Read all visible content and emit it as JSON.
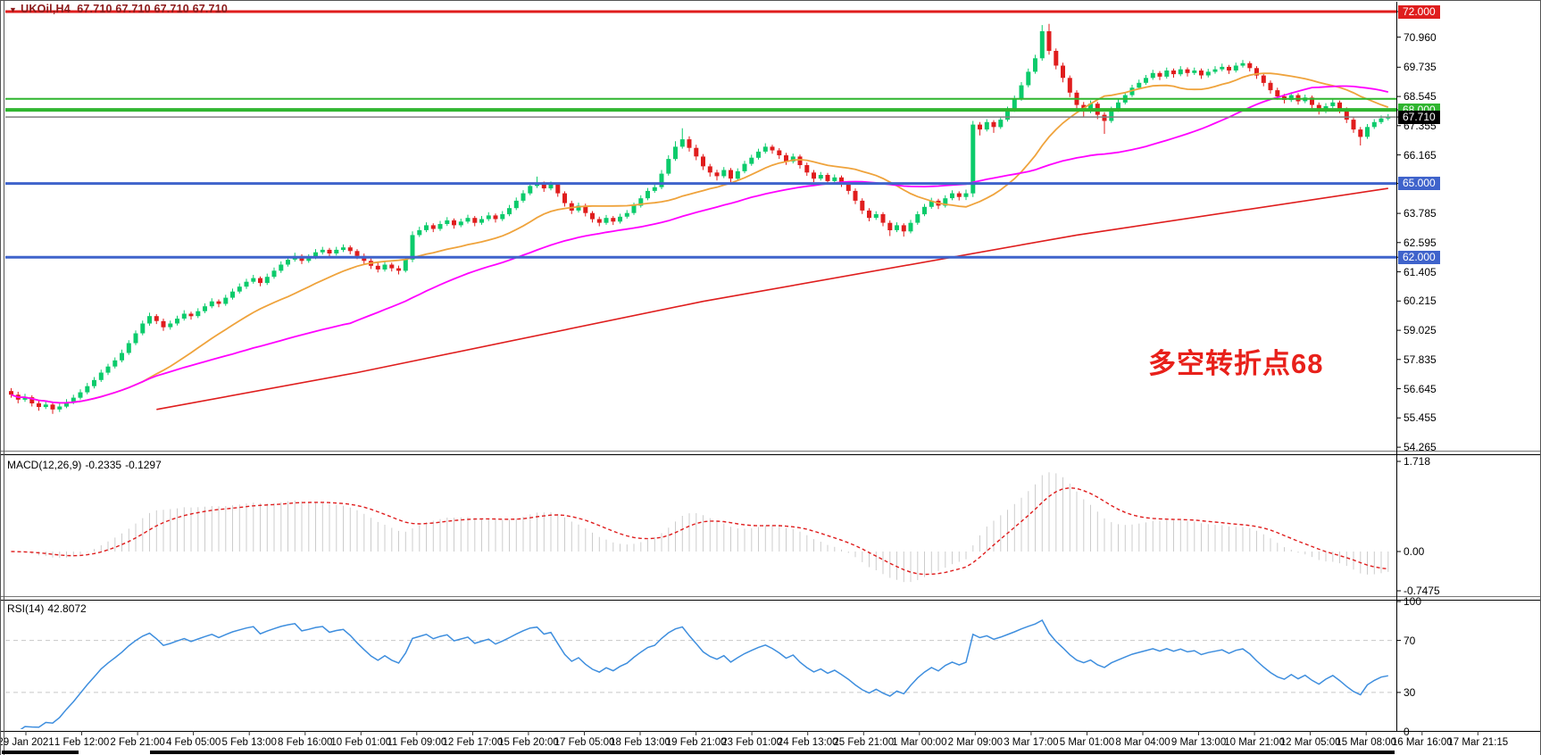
{
  "header": {
    "arrow": "▼",
    "symbol": "UKOil,H4",
    "ohlc": "67.710 67.710 67.710 67.710",
    "color": "#8B1A1A"
  },
  "annotation": {
    "text": "多空转折点68",
    "color": "#E8201A"
  },
  "indicators": {
    "macd": {
      "label": "MACD(12,26,9)",
      "value_main": "-0.2335",
      "value_signal": "-0.1297",
      "fast": 12,
      "slow": 26,
      "signal": 9,
      "axis_labels": [
        "1.718",
        "0.00",
        "-0.7475"
      ],
      "hist_color": "#CCCCCC",
      "signal_color": "#DF1D1D"
    },
    "rsi": {
      "label": "RSI(14)",
      "value": "42.8072",
      "period": 14,
      "axis_labels": [
        "100",
        "70",
        "30",
        "0"
      ],
      "levels": [
        70,
        30
      ],
      "color": "#3E8EDE"
    }
  },
  "chart_data": {
    "type": "candlestick",
    "symbol": "UKOil",
    "timeframe": "H4",
    "current_price": 67.71,
    "colors": {
      "bull": "#0BCB6B",
      "bear": "#E01D1D",
      "ma_fast": "#EFA33C",
      "ma_medium": "#FF00FF",
      "trend": "#DF1D1D",
      "level_blue": "#3F63CB",
      "level_green": "#2FB52F",
      "level_red": "#DF1D1D",
      "current_line": "#808080"
    },
    "y_axis": {
      "min": 54.04,
      "max": 72.11,
      "plain_ticks": [
        70.96,
        69.735,
        68.545,
        67.355,
        66.165,
        63.785,
        62.595,
        61.405,
        60.215,
        59.025,
        57.835,
        56.645,
        55.455,
        54.265
      ]
    },
    "price_labels": [
      {
        "text": "72.000",
        "value": 72.0,
        "bg": "#DF1D1D"
      },
      {
        "text": "68.000",
        "value": 68.0,
        "bg": "#2FB52F"
      },
      {
        "text": "67.710",
        "value": 67.71,
        "bg": "#000000"
      },
      {
        "text": "65.000",
        "value": 65.0,
        "bg": "#3F63CB"
      },
      {
        "text": "62.000",
        "value": 62.0,
        "bg": "#3F63CB"
      }
    ],
    "h_lines": [
      {
        "price": 72.0,
        "color": "#DF1D1D",
        "width": 3
      },
      {
        "price": 68.45,
        "color": "#2FB52F",
        "width": 2
      },
      {
        "price": 68.0,
        "color": "#2FB52F",
        "width": 4
      },
      {
        "price": 67.71,
        "color": "#808080",
        "width": 1.5
      },
      {
        "price": 65.0,
        "color": "#3F63CB",
        "width": 3
      },
      {
        "price": 62.0,
        "color": "#3F63CB",
        "width": 3
      }
    ],
    "moving_averages": [
      {
        "name": "ma-fast",
        "period": 20,
        "color": "#EFA33C"
      },
      {
        "name": "ma-medium",
        "period": 50,
        "color": "#FF00FF"
      }
    ],
    "trend_line": {
      "color": "#DF1D1D",
      "anchors": [
        [
          21,
          55.8
        ],
        [
          50,
          57.3
        ],
        [
          100,
          60.2
        ],
        [
          154,
          62.9
        ],
        [
          199,
          64.8
        ]
      ]
    },
    "macd_scale": {
      "max": 1.718,
      "min": -0.7475
    },
    "rsi_scale": {
      "max": 100,
      "min": 0,
      "levels": [
        70,
        30
      ]
    },
    "time_labels": [
      "29 Jan 2021",
      "1 Feb 12:00",
      "2 Feb 21:00",
      "4 Feb 05:00",
      "5 Feb 13:00",
      "8 Feb 16:00",
      "10 Feb 01:00",
      "11 Feb 09:00",
      "12 Feb 17:00",
      "15 Feb 20:00",
      "17 Feb 05:00",
      "18 Feb 13:00",
      "19 Feb 21:00",
      "23 Feb 01:00",
      "24 Feb 13:00",
      "25 Feb 21:00",
      "1 Mar 00:00",
      "2 Mar 09:00",
      "3 Mar 17:00",
      "5 Mar 01:00",
      "8 Mar 04:00",
      "9 Mar 13:00",
      "10 Mar 21:00",
      "12 Mar 05:00",
      "15 Mar 08:00",
      "16 Mar 16:00",
      "17 Mar 21:15"
    ],
    "candles": [
      [
        56.55,
        56.67,
        56.28,
        56.4
      ],
      [
        56.4,
        56.52,
        56.05,
        56.2
      ],
      [
        56.2,
        56.44,
        56.11,
        56.3
      ],
      [
        56.3,
        56.38,
        55.92,
        56.05
      ],
      [
        56.05,
        56.18,
        55.75,
        55.9
      ],
      [
        55.9,
        56.12,
        55.82,
        56.0
      ],
      [
        56.0,
        56.08,
        55.62,
        55.8
      ],
      [
        55.8,
        56.06,
        55.7,
        55.92
      ],
      [
        55.92,
        56.22,
        55.85,
        56.1
      ],
      [
        56.1,
        56.4,
        56.02,
        56.28
      ],
      [
        56.28,
        56.62,
        56.2,
        56.5
      ],
      [
        56.5,
        56.88,
        56.42,
        56.75
      ],
      [
        56.75,
        57.12,
        56.66,
        57.0
      ],
      [
        57.0,
        57.42,
        56.92,
        57.3
      ],
      [
        57.3,
        57.66,
        57.2,
        57.55
      ],
      [
        57.55,
        57.92,
        57.47,
        57.8
      ],
      [
        57.8,
        58.24,
        57.72,
        58.1
      ],
      [
        58.1,
        58.62,
        58.02,
        58.5
      ],
      [
        58.5,
        59.02,
        58.42,
        58.9
      ],
      [
        58.9,
        59.42,
        58.82,
        59.3
      ],
      [
        59.3,
        59.74,
        59.21,
        59.6
      ],
      [
        59.6,
        59.68,
        59.28,
        59.4
      ],
      [
        59.4,
        59.5,
        59.0,
        59.15
      ],
      [
        59.15,
        59.42,
        59.05,
        59.3
      ],
      [
        59.3,
        59.62,
        59.22,
        59.5
      ],
      [
        59.5,
        59.84,
        59.42,
        59.7
      ],
      [
        59.7,
        59.78,
        59.46,
        59.6
      ],
      [
        59.6,
        59.92,
        59.52,
        59.8
      ],
      [
        59.8,
        60.12,
        59.72,
        60.0
      ],
      [
        60.0,
        60.33,
        59.92,
        60.2
      ],
      [
        60.2,
        60.28,
        59.96,
        60.1
      ],
      [
        60.1,
        60.47,
        60.02,
        60.35
      ],
      [
        60.35,
        60.72,
        60.27,
        60.6
      ],
      [
        60.6,
        60.93,
        60.52,
        60.8
      ],
      [
        60.8,
        61.12,
        60.71,
        61.0
      ],
      [
        61.0,
        61.28,
        60.92,
        61.15
      ],
      [
        61.15,
        61.22,
        60.82,
        60.95
      ],
      [
        60.95,
        61.33,
        60.87,
        61.2
      ],
      [
        61.2,
        61.58,
        61.12,
        61.45
      ],
      [
        61.45,
        61.83,
        61.36,
        61.7
      ],
      [
        61.7,
        62.02,
        61.62,
        61.9
      ],
      [
        61.9,
        62.18,
        61.82,
        62.05
      ],
      [
        62.05,
        62.12,
        61.72,
        61.85
      ],
      [
        61.85,
        62.12,
        61.77,
        62.0
      ],
      [
        62.0,
        62.33,
        61.92,
        62.2
      ],
      [
        62.2,
        62.42,
        62.11,
        62.3
      ],
      [
        62.3,
        62.38,
        62.02,
        62.15
      ],
      [
        62.15,
        62.42,
        62.07,
        62.3
      ],
      [
        62.3,
        62.52,
        62.21,
        62.4
      ],
      [
        62.4,
        62.48,
        62.12,
        62.25
      ],
      [
        62.25,
        62.33,
        61.92,
        62.05
      ],
      [
        62.05,
        62.15,
        61.72,
        61.85
      ],
      [
        61.85,
        61.95,
        61.52,
        61.65
      ],
      [
        61.65,
        61.78,
        61.38,
        61.5
      ],
      [
        61.5,
        61.82,
        61.42,
        61.7
      ],
      [
        61.7,
        61.78,
        61.42,
        61.55
      ],
      [
        61.55,
        61.66,
        61.3,
        61.45
      ],
      [
        61.45,
        62.02,
        61.38,
        61.9
      ],
      [
        61.9,
        63.05,
        61.8,
        62.9
      ],
      [
        62.9,
        63.24,
        62.82,
        63.1
      ],
      [
        63.1,
        63.42,
        63.02,
        63.3
      ],
      [
        63.3,
        63.38,
        63.02,
        63.15
      ],
      [
        63.15,
        63.48,
        63.07,
        63.35
      ],
      [
        63.35,
        63.63,
        63.27,
        63.5
      ],
      [
        63.5,
        63.58,
        63.16,
        63.3
      ],
      [
        63.3,
        63.57,
        63.22,
        63.45
      ],
      [
        63.45,
        63.73,
        63.37,
        63.6
      ],
      [
        63.6,
        63.68,
        63.26,
        63.4
      ],
      [
        63.4,
        63.68,
        63.32,
        63.55
      ],
      [
        63.55,
        63.83,
        63.47,
        63.7
      ],
      [
        63.7,
        63.78,
        63.41,
        63.55
      ],
      [
        63.55,
        63.88,
        63.47,
        63.75
      ],
      [
        63.75,
        64.13,
        63.67,
        64.0
      ],
      [
        64.0,
        64.43,
        63.92,
        64.3
      ],
      [
        64.3,
        64.73,
        64.22,
        64.6
      ],
      [
        64.6,
        65.02,
        64.52,
        64.9
      ],
      [
        64.9,
        65.28,
        64.82,
        65.0
      ],
      [
        65.0,
        65.08,
        64.66,
        64.8
      ],
      [
        64.8,
        65.08,
        64.72,
        64.95
      ],
      [
        64.95,
        65.02,
        64.46,
        64.6
      ],
      [
        64.6,
        64.68,
        64.06,
        64.2
      ],
      [
        64.2,
        64.3,
        63.76,
        63.9
      ],
      [
        63.9,
        64.22,
        63.82,
        64.1
      ],
      [
        64.1,
        64.18,
        63.66,
        63.8
      ],
      [
        63.8,
        63.88,
        63.41,
        63.55
      ],
      [
        63.55,
        63.65,
        63.26,
        63.4
      ],
      [
        63.4,
        63.72,
        63.32,
        63.6
      ],
      [
        63.6,
        63.68,
        63.31,
        63.45
      ],
      [
        63.45,
        63.77,
        63.37,
        63.65
      ],
      [
        63.65,
        63.92,
        63.57,
        63.8
      ],
      [
        63.8,
        64.22,
        63.72,
        64.1
      ],
      [
        64.1,
        64.52,
        64.02,
        64.4
      ],
      [
        64.4,
        64.82,
        64.32,
        64.7
      ],
      [
        64.7,
        64.97,
        64.62,
        64.85
      ],
      [
        64.85,
        65.55,
        64.77,
        65.4
      ],
      [
        65.4,
        66.15,
        65.32,
        66.0
      ],
      [
        66.0,
        66.72,
        65.92,
        66.5
      ],
      [
        66.5,
        67.25,
        66.42,
        66.8
      ],
      [
        66.8,
        66.92,
        66.3,
        66.45
      ],
      [
        66.45,
        66.58,
        65.95,
        66.1
      ],
      [
        66.1,
        66.2,
        65.55,
        65.7
      ],
      [
        65.7,
        65.8,
        65.28,
        65.45
      ],
      [
        65.45,
        65.56,
        65.12,
        65.3
      ],
      [
        65.3,
        65.67,
        65.22,
        65.55
      ],
      [
        65.55,
        65.63,
        65.05,
        65.2
      ],
      [
        65.2,
        65.62,
        65.12,
        65.5
      ],
      [
        65.5,
        65.92,
        65.42,
        65.8
      ],
      [
        65.8,
        66.17,
        65.72,
        66.05
      ],
      [
        66.05,
        66.42,
        65.97,
        66.3
      ],
      [
        66.3,
        66.64,
        66.22,
        66.5
      ],
      [
        66.5,
        66.58,
        66.21,
        66.35
      ],
      [
        66.35,
        66.44,
        66.0,
        66.15
      ],
      [
        66.15,
        66.25,
        65.76,
        65.9
      ],
      [
        65.9,
        66.22,
        65.82,
        66.1
      ],
      [
        66.1,
        66.18,
        65.61,
        65.75
      ],
      [
        65.75,
        65.85,
        65.31,
        65.45
      ],
      [
        65.45,
        65.55,
        65.06,
        65.2
      ],
      [
        65.2,
        65.47,
        65.12,
        65.35
      ],
      [
        65.35,
        65.43,
        64.96,
        65.1
      ],
      [
        65.1,
        65.37,
        65.02,
        65.25
      ],
      [
        65.25,
        65.33,
        64.86,
        65.0
      ],
      [
        65.0,
        65.08,
        64.56,
        64.7
      ],
      [
        64.7,
        64.8,
        64.16,
        64.3
      ],
      [
        64.3,
        64.4,
        63.76,
        63.9
      ],
      [
        63.9,
        64.0,
        63.46,
        63.6
      ],
      [
        63.6,
        63.87,
        63.52,
        63.75
      ],
      [
        63.75,
        63.83,
        63.26,
        63.4
      ],
      [
        63.4,
        63.5,
        62.86,
        63.1
      ],
      [
        63.1,
        63.42,
        63.02,
        63.3
      ],
      [
        63.3,
        63.38,
        62.84,
        63.05
      ],
      [
        63.05,
        63.52,
        62.97,
        63.4
      ],
      [
        63.4,
        63.87,
        63.32,
        63.75
      ],
      [
        63.75,
        64.17,
        63.67,
        64.05
      ],
      [
        64.05,
        64.42,
        63.97,
        64.3
      ],
      [
        64.3,
        64.38,
        63.96,
        64.1
      ],
      [
        64.1,
        64.52,
        64.02,
        64.4
      ],
      [
        64.4,
        64.72,
        64.32,
        64.6
      ],
      [
        64.6,
        64.68,
        64.31,
        64.45
      ],
      [
        64.45,
        64.75,
        64.33,
        64.6
      ],
      [
        64.6,
        67.55,
        64.45,
        67.4
      ],
      [
        67.4,
        67.5,
        66.96,
        67.2
      ],
      [
        67.2,
        67.62,
        67.12,
        67.5
      ],
      [
        67.5,
        67.58,
        67.06,
        67.3
      ],
      [
        67.3,
        67.73,
        67.22,
        67.6
      ],
      [
        67.6,
        68.13,
        67.52,
        68.0
      ],
      [
        68.0,
        68.58,
        67.92,
        68.45
      ],
      [
        68.45,
        69.13,
        68.37,
        69.0
      ],
      [
        69.0,
        69.68,
        68.92,
        69.55
      ],
      [
        69.55,
        70.24,
        69.47,
        70.1
      ],
      [
        70.1,
        71.45,
        70.0,
        71.2
      ],
      [
        71.2,
        71.5,
        70.25,
        70.4
      ],
      [
        70.4,
        70.5,
        69.65,
        69.8
      ],
      [
        69.8,
        69.92,
        69.12,
        69.3
      ],
      [
        69.3,
        69.4,
        68.52,
        68.7
      ],
      [
        68.7,
        68.8,
        68.02,
        68.2
      ],
      [
        68.2,
        68.32,
        67.72,
        67.95
      ],
      [
        67.95,
        68.38,
        67.87,
        68.25
      ],
      [
        68.25,
        68.33,
        67.62,
        67.8
      ],
      [
        67.8,
        67.9,
        67.02,
        67.55
      ],
      [
        67.55,
        68.13,
        67.47,
        68.0
      ],
      [
        68.0,
        68.42,
        67.92,
        68.3
      ],
      [
        68.3,
        68.73,
        68.22,
        68.6
      ],
      [
        68.6,
        69.02,
        68.52,
        68.9
      ],
      [
        68.9,
        69.23,
        68.82,
        69.1
      ],
      [
        69.1,
        69.42,
        69.02,
        69.3
      ],
      [
        69.3,
        69.63,
        69.22,
        69.5
      ],
      [
        69.5,
        69.58,
        69.21,
        69.35
      ],
      [
        69.35,
        69.72,
        69.27,
        69.6
      ],
      [
        69.6,
        69.68,
        69.31,
        69.45
      ],
      [
        69.45,
        69.78,
        69.37,
        69.65
      ],
      [
        69.65,
        69.73,
        69.36,
        69.5
      ],
      [
        69.5,
        69.72,
        69.42,
        69.6
      ],
      [
        69.6,
        69.68,
        69.26,
        69.4
      ],
      [
        69.4,
        69.67,
        69.32,
        69.55
      ],
      [
        69.55,
        69.78,
        69.47,
        69.65
      ],
      [
        69.65,
        69.88,
        69.57,
        69.75
      ],
      [
        69.75,
        69.83,
        69.46,
        69.6
      ],
      [
        69.6,
        69.92,
        69.52,
        69.8
      ],
      [
        69.8,
        70.03,
        69.72,
        69.9
      ],
      [
        69.9,
        69.98,
        69.56,
        69.7
      ],
      [
        69.7,
        69.78,
        69.26,
        69.4
      ],
      [
        69.4,
        69.5,
        68.96,
        69.1
      ],
      [
        69.1,
        69.2,
        68.66,
        68.8
      ],
      [
        68.8,
        68.9,
        68.41,
        68.55
      ],
      [
        68.55,
        68.65,
        68.26,
        68.4
      ],
      [
        68.4,
        68.72,
        68.32,
        68.6
      ],
      [
        68.6,
        68.68,
        68.21,
        68.35
      ],
      [
        68.35,
        68.62,
        68.27,
        68.5
      ],
      [
        68.5,
        68.58,
        68.06,
        68.2
      ],
      [
        68.2,
        68.3,
        67.81,
        67.95
      ],
      [
        67.95,
        68.27,
        67.87,
        68.15
      ],
      [
        68.15,
        68.42,
        68.07,
        68.3
      ],
      [
        68.3,
        68.38,
        67.86,
        68.0
      ],
      [
        68.0,
        68.1,
        67.46,
        67.6
      ],
      [
        67.6,
        67.7,
        67.06,
        67.2
      ],
      [
        67.2,
        67.3,
        66.55,
        66.9
      ],
      [
        66.9,
        67.42,
        66.82,
        67.3
      ],
      [
        67.3,
        67.62,
        67.22,
        67.5
      ],
      [
        67.5,
        67.77,
        67.42,
        67.65
      ],
      [
        67.65,
        67.83,
        67.57,
        67.71
      ]
    ]
  }
}
